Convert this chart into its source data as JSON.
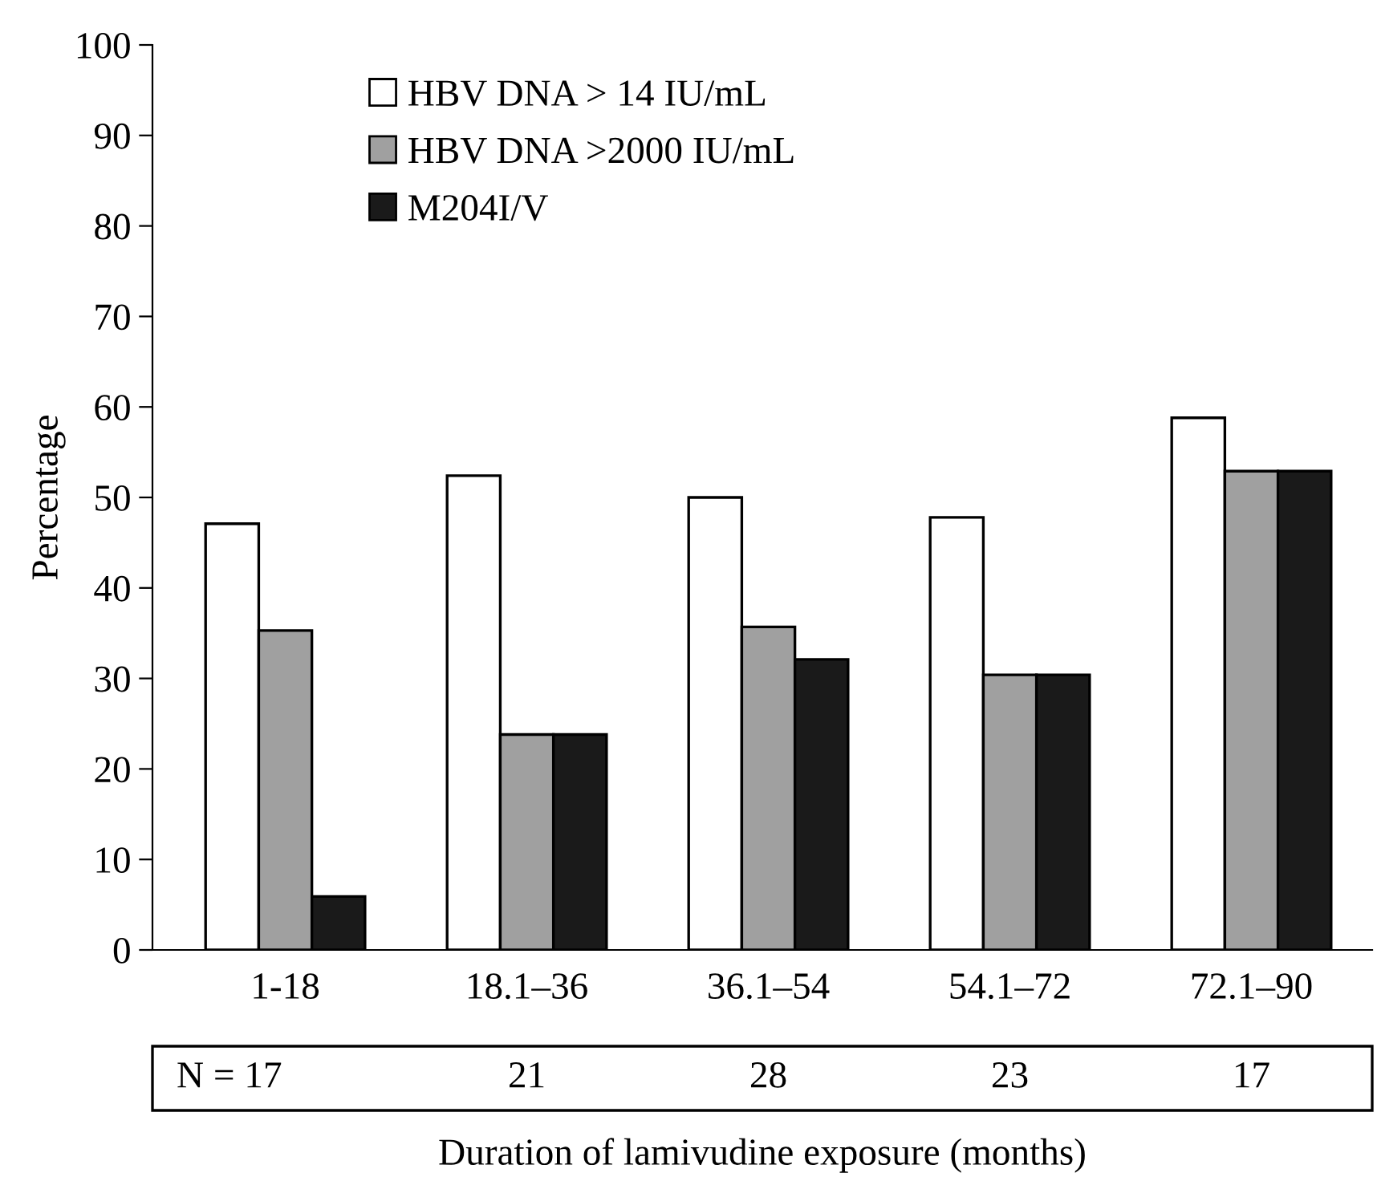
{
  "chart_data": {
    "type": "bar",
    "xlabel": "Duration of lamivudine exposure (months)",
    "ylabel": "Percentage",
    "categories": [
      "1-18",
      "18.1–36",
      "36.1–54",
      "54.1–72",
      "72.1–90"
    ],
    "series": [
      {
        "name": "HBV DNA > 14 IU/mL",
        "color": "#ffffff",
        "values": [
          47.1,
          52.4,
          50.0,
          47.8,
          58.8
        ]
      },
      {
        "name": "HBV DNA >2000 IU/mL",
        "color": "#a0a0a0",
        "values": [
          35.3,
          23.8,
          35.7,
          30.4,
          52.9
        ]
      },
      {
        "name": "M204I/V",
        "color": "#1a1a1a",
        "values": [
          5.9,
          23.8,
          32.1,
          30.4,
          52.9
        ]
      }
    ],
    "ylim": [
      0,
      100
    ],
    "yticks": [
      0,
      10,
      20,
      30,
      40,
      50,
      60,
      70,
      80,
      90,
      100
    ],
    "grid": false,
    "legend": "top left",
    "annotations": [
      "N = 17",
      "21",
      "28",
      "23",
      "17"
    ]
  }
}
